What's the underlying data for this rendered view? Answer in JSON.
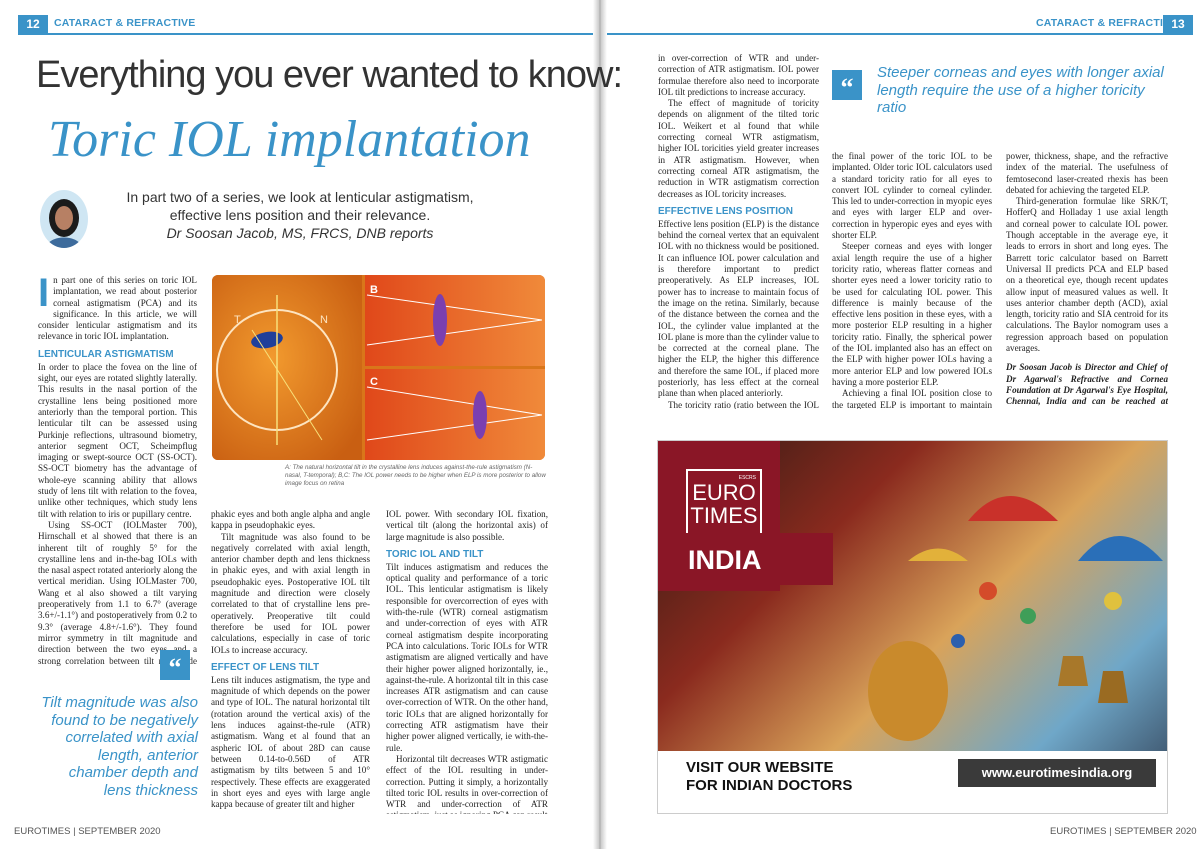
{
  "header": {
    "left_page_number": "12",
    "right_page_number": "13",
    "section": "CATARACT & REFRACTIVE"
  },
  "title": {
    "line1": "Everything you ever wanted to know:",
    "line2": "Toric IOL implantation"
  },
  "standfirst": {
    "line1": "In part two of a series, we look at lenticular astigmatism,",
    "line2": "effective lens position and their relevance.",
    "byline": "Dr Soosan Jacob, MS, FRCS, DNB reports"
  },
  "figure": {
    "labels": {
      "a_t": "T",
      "a_n": "N",
      "b": "B",
      "c": "C"
    },
    "caption": "A: The natural horizontal tilt in the crystalline lens induces against-the-rule astigmatism (N-nasal, T-temporal); B,C: The IOL power needs to be higher when ELP is more posterior to allow image focus on retina"
  },
  "col1": {
    "drop_cap": "I",
    "intro": "n part one of this series on toric IOL implantation, we read about posterior corneal astigmatism (PCA) and its significance. In this article, we will consider lenticular astigmatism and its relevance in toric IOL implantation.",
    "heading": "LENTICULAR ASTIGMATISM",
    "p1": "In order to place the fovea on the line of sight, our eyes are rotated slightly laterally. This results in the nasal portion of the crystalline lens being positioned more anteriorly than the temporal portion. This lenticular tilt can be assessed using Purkinje reflections, ultrasound biometry, anterior segment OCT, Scheimpflug imaging or swept-source OCT (SS-OCT). SS-OCT biometry has the advantage of whole-eye scanning ability that allows study of lens tilt with relation to the fovea, unlike other techniques, which study lens tilt with relation to iris or pupillary centre.",
    "p2": "Using SS-OCT (IOLMaster 700), Hirnschall et al showed that there is an inherent tilt of roughly 5° for the crystalline lens and in-the-bag IOLs with the nasal aspect rotated anteriorly along the vertical meridian. Using IOLMaster 700, Wang et al also showed a tilt varying preoperatively from 1.1 to 6.7° (average 3.6+/-1.1°) and postoperatively from 0.2 to 9.3° (average 4.8+/-1.6°). They found mirror symmetry in tilt magnitude and direction between the two eyes and a strong correlation between tilt magnitude and angle alpha in"
  },
  "pullquote_left": "Tilt magnitude was also found to be negatively correlated with axial length, anterior chamber depth and lens thickness",
  "col2": {
    "p1": "phakic eyes and both angle alpha and angle kappa in pseudophakic eyes.",
    "p2": "Tilt magnitude was also found to be negatively correlated with axial length, anterior chamber depth and lens thickness in phakic eyes, and with axial length in pseudophakic eyes. Postoperative IOL tilt magnitude and direction were closely correlated to that of crystalline lens pre-operatively. Preoperative tilt could therefore be used for IOL power calculations, especially in case of toric IOLs to increase accuracy.",
    "heading": "EFFECT OF LENS TILT",
    "p3": "Lens tilt induces astigmatism, the type and magnitude of which depends on the power and type of IOL. The natural horizontal tilt (rotation around the vertical axis) of the lens induces against-the-rule (ATR) astigmatism. Wang et al found that an aspheric IOL of about 28D can cause between 0.14-to-0.56D of ATR astigmatism by tilts between 5 and 10° respectively. These effects are exaggerated in short eyes and eyes with large angle kappa because of greater tilt and higher"
  },
  "col3": {
    "p1": "IOL power. With secondary IOL fixation, vertical tilt (along the horizontal axis) of large magnitude is also possible.",
    "heading": "TORIC IOL AND TILT",
    "p2": "Tilt induces astigmatism and reduces the optical quality and performance of a toric IOL. This lenticular astigmatism is likely responsible for overcorrection of eyes with with-the-rule (WTR) corneal astigmatism and under-correction of eyes with ATR corneal astigmatism despite incorporating PCA into calculations. Toric IOLs for WTR astigmatism are aligned vertically and have their higher power aligned horizontally, ie., against-the-rule. A horizontal tilt in this case increases ATR astigmatism and can cause over-correction of WTR. On the other hand, toric IOLs that are aligned horizontally for correcting ATR astigmatism have their higher power aligned vertically, ie with-the-rule.",
    "p3": "Horizontal tilt decreases WTR astigmatic effect of the IOL resulting in under-correction. Putting it simply, a horizontally tilted toric IOL results in over-correction of WTR and under-correction of ATR astigmatism, just as ignoring PCA can result"
  },
  "col4": {
    "p1": "in over-correction of WTR and under-correction of ATR astigmatism. IOL power formulae therefore also need to incorporate IOL tilt predictions to increase accuracy.",
    "p2": "The effect of magnitude of toricity depends on alignment of the tilted toric IOL. Weikert et al found that while correcting corneal WTR astigmatism, higher IOL toricities yield greater increases in ATR astigmatism. However, when correcting corneal ATR astigmatism, the reduction in WTR astigmatism correction decreases as IOL toricity increases.",
    "heading": "EFFECTIVE LENS POSITION",
    "p3": "Effective lens position (ELP) is the distance behind the corneal vertex that an equivalent IOL with no thickness would be positioned. It can influence IOL power calculation and is therefore important to predict preoperatively. As ELP increases, IOL power has to increase to maintain focus of the image on the retina. Similarly, because of the distance between the cornea and the IOL, the cylinder value implanted at the IOL plane is more than the cylinder value to be corrected at the corneal plane. The higher the ELP, the higher this difference and therefore the same IOL, if placed more posteriorly, has less effect at the corneal plane than when placed anteriorly.",
    "p4": "The toricity ratio (ratio between the IOL cylinder and corneal cylinder) determines"
  },
  "pullquote_right": "Steeper corneas and eyes with longer axial length require the use of a higher toricity ratio",
  "col5": {
    "p1": "the final power of the toric IOL to be implanted. Older toric IOL calculators used a standard toricity ratio for all eyes to convert IOL cylinder to corneal cylinder. This led to under-correction in myopic eyes and eyes with larger ELP and over-correction in hyperopic eyes and eyes with shorter ELP.",
    "p2": "Steeper corneas and eyes with longer axial length require the use of a higher toricity ratio, whereas flatter corneas and shorter eyes need a lower toricity ratio to be used for calculating IOL power. This difference is mainly because of the effective lens position in these eyes, with a more posterior ELP resulting in a higher toricity ratio. Finally, the spherical power of the IOL implanted also has an effect on the ELP with higher power IOLs having a more anterior ELP and low powered IOLs having a more posterior ELP.",
    "p3": "Achieving a final IOL position close to the targeted ELP is important to maintain postoperative refractive accuracy. Factors influencing ELP include wound healing, IOL"
  },
  "col6": {
    "p1": "power, thickness, shape, and the refractive index of the material. The usefulness of femtosecond laser-created rhexis has been debated for achieving the targeted ELP.",
    "p2": "Third-generation formulae like SRK/T, HofferQ and Holladay 1 use axial length and corneal power to calculate IOL power. Though acceptable in the average eye, it leads to errors in short and long eyes. The Barrett toric calculator based on Barrett Universal II predicts PCA and ELP based on a theoretical eye, though recent updates allow input of measured values as well. It uses anterior chamber depth (ACD), axial length, toricity ratio and SIA centroid for its calculations. The Baylor nomogram uses a regression approach based on population averages.",
    "bio": "Dr Soosan Jacob is Director and Chief of Dr Agarwal's Refractive and Cornea Foundation at Dr Agarwal's Eye Hospital, Chennai, India and can be reached at dr_soosanj@hotmail.com"
  },
  "ad": {
    "logo_line1": "EURO",
    "logo_line2": "TIMES",
    "logo_est": "ESCRS",
    "edition": "INDIA",
    "cta_line1": "VISIT OUR WEBSITE",
    "cta_line2": "FOR INDIAN DOCTORS",
    "url": "www.eurotimesindia.org"
  },
  "footer": {
    "left": "EUROTIMES | SEPTEMBER 2020",
    "right": "EUROTIMES | SEPTEMBER 2020"
  },
  "colors": {
    "accent": "#3a93c8",
    "ad_red": "#8a1626"
  }
}
